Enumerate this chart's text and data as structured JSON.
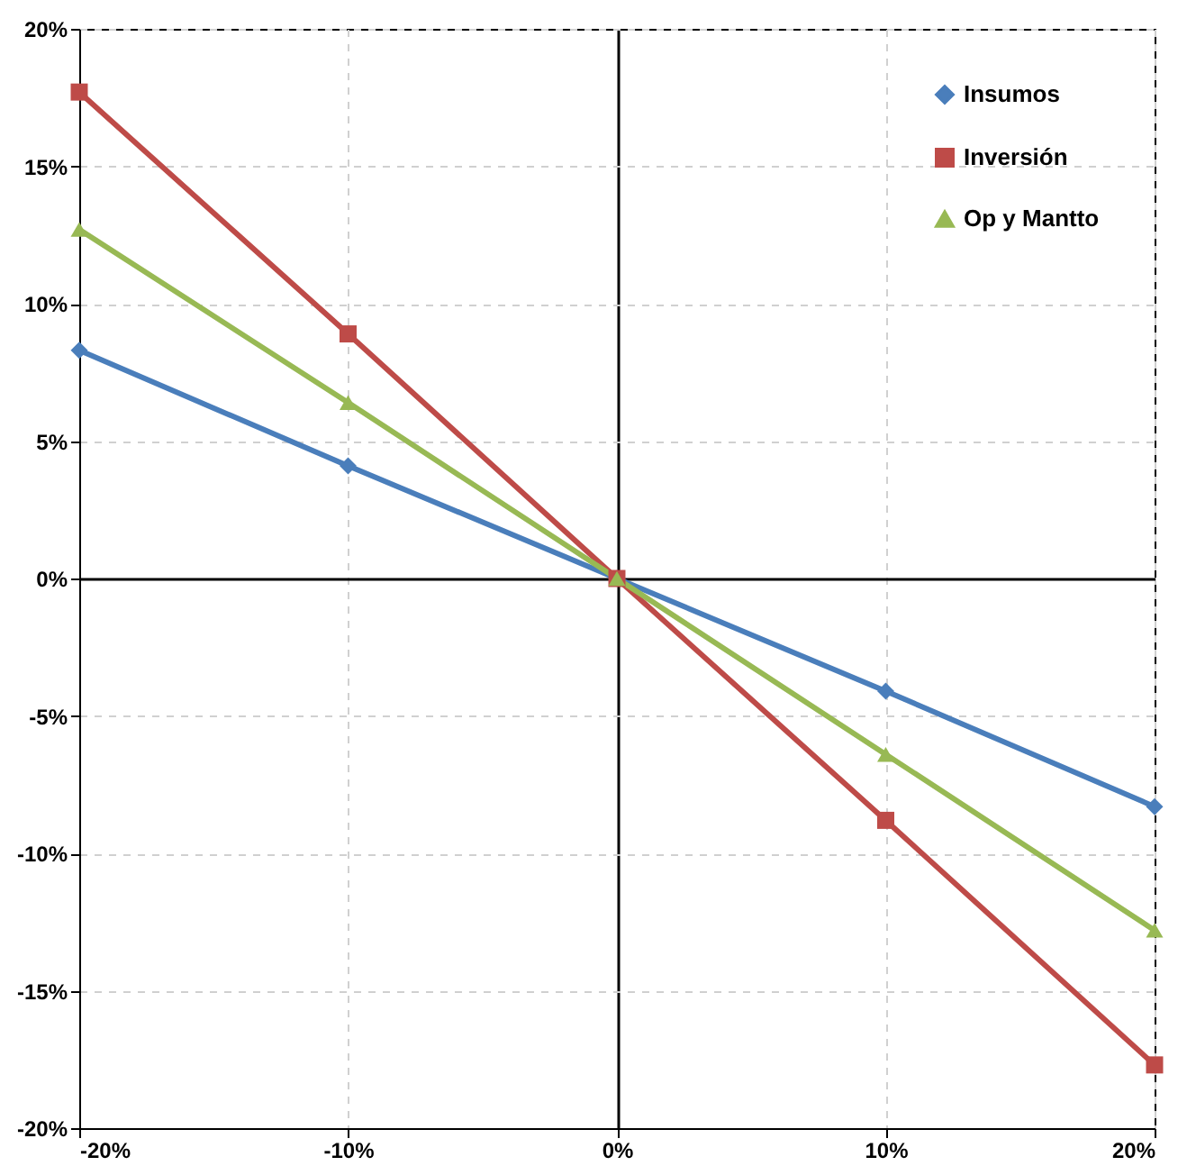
{
  "chart_data": {
    "type": "line",
    "x": [
      -20,
      -10,
      0,
      10,
      20
    ],
    "series": [
      {
        "name": "Insumos",
        "color": "#4a7ebb",
        "marker": "diamond",
        "values": [
          8.3,
          4.1,
          0,
          -4.1,
          -8.3
        ]
      },
      {
        "name": "Inversión",
        "color": "#be4b48",
        "marker": "square",
        "values": [
          17.7,
          8.9,
          0,
          -8.8,
          -17.7
        ]
      },
      {
        "name": "Op y Mantto",
        "color": "#98b954",
        "marker": "triangle",
        "values": [
          12.7,
          6.4,
          0,
          -6.4,
          -12.8
        ]
      }
    ],
    "xlim": [
      -20,
      20
    ],
    "ylim": [
      -20,
      20
    ],
    "xticks": [
      {
        "value": -20,
        "label": "-20%"
      },
      {
        "value": -10,
        "label": "-10%"
      },
      {
        "value": 0,
        "label": "0%"
      },
      {
        "value": 10,
        "label": "10%"
      },
      {
        "value": 20,
        "label": "20%"
      }
    ],
    "yticks": [
      {
        "value": -20,
        "label": "-20%"
      },
      {
        "value": -15,
        "label": "-15%"
      },
      {
        "value": -10,
        "label": "-10%"
      },
      {
        "value": -5,
        "label": "-5%"
      },
      {
        "value": 0,
        "label": "0%"
      },
      {
        "value": 5,
        "label": "5%"
      },
      {
        "value": 10,
        "label": "10%"
      },
      {
        "value": 15,
        "label": "15%"
      },
      {
        "value": 20,
        "label": "20%"
      }
    ],
    "grid": true,
    "legend": "top right",
    "line_style": "solid"
  }
}
